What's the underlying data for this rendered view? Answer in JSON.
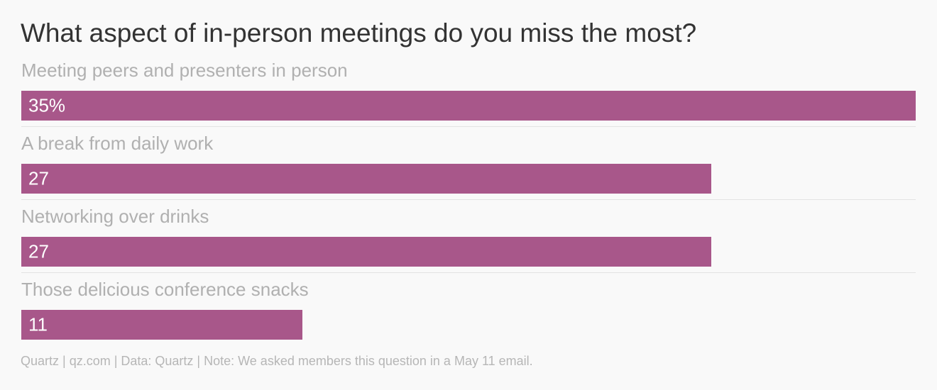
{
  "chart_data": {
    "type": "bar",
    "orientation": "horizontal",
    "title": "What aspect of in-person meetings do you miss the most?",
    "categories": [
      "Meeting peers and presenters in person",
      "A break from daily work",
      "Networking over drinks",
      "Those delicious conference snacks"
    ],
    "values": [
      35,
      27,
      27,
      11
    ],
    "value_labels": [
      "35%",
      "27",
      "27",
      "11"
    ],
    "xlim": [
      0,
      35
    ],
    "unit": "%",
    "bar_color": "#a8578a",
    "grid": false,
    "legend": "none",
    "source_note": "Quartz | qz.com | Data: Quartz | Note: We asked members this question in a May 11 email."
  }
}
